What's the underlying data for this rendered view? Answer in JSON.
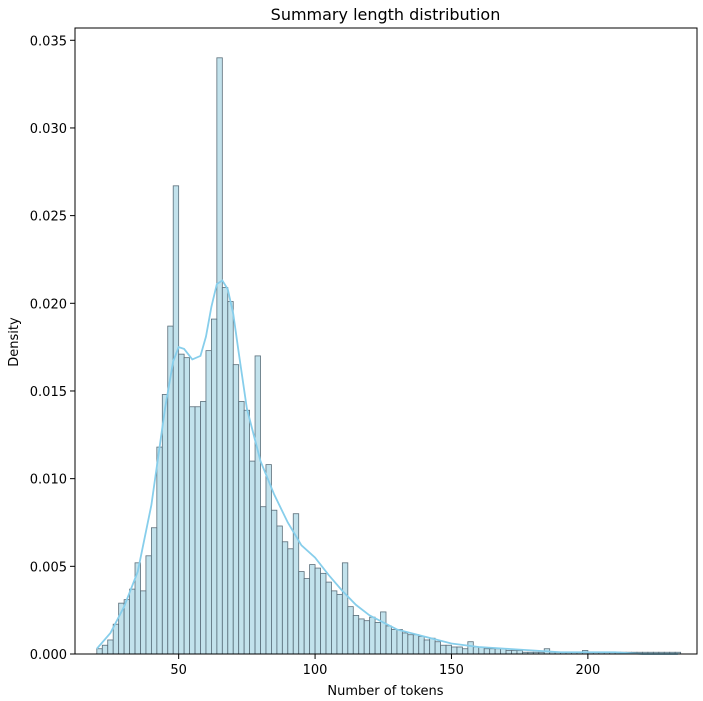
{
  "chart_data": {
    "type": "bar",
    "title": "Summary length distribution",
    "xlabel": "Number of tokens",
    "ylabel": "Density",
    "xlim": [
      12,
      240
    ],
    "ylim": [
      0,
      0.0357
    ],
    "xticks": [
      50,
      100,
      150,
      200
    ],
    "yticks": [
      0.0,
      0.005,
      0.01,
      0.015,
      0.02,
      0.025,
      0.03,
      0.035
    ],
    "ytick_labels": [
      "0.000",
      "0.005",
      "0.010",
      "0.015",
      "0.020",
      "0.025",
      "0.030",
      "0.035"
    ],
    "bin_width": 2,
    "bin_starts": [
      20,
      22,
      24,
      26,
      28,
      30,
      32,
      34,
      36,
      38,
      40,
      42,
      44,
      46,
      48,
      50,
      52,
      54,
      56,
      58,
      60,
      62,
      64,
      66,
      68,
      70,
      72,
      74,
      76,
      78,
      80,
      82,
      84,
      86,
      88,
      90,
      92,
      94,
      96,
      98,
      100,
      102,
      104,
      106,
      108,
      110,
      112,
      114,
      116,
      118,
      120,
      122,
      124,
      126,
      128,
      130,
      132,
      134,
      136,
      138,
      140,
      142,
      144,
      146,
      148,
      150,
      152,
      154,
      156,
      158,
      160,
      162,
      164,
      166,
      168,
      170,
      172,
      174,
      176,
      178,
      180,
      182,
      184,
      186,
      188,
      190,
      192,
      194,
      196,
      198,
      200,
      202,
      204,
      206,
      208,
      210,
      212,
      214,
      216,
      218,
      220,
      222,
      224,
      226,
      228,
      230,
      232
    ],
    "density": [
      0.0003,
      0.0005,
      0.0008,
      0.0017,
      0.0029,
      0.0031,
      0.0037,
      0.0052,
      0.0036,
      0.0056,
      0.0072,
      0.0118,
      0.0148,
      0.0187,
      0.0267,
      0.0171,
      0.0169,
      0.0141,
      0.0141,
      0.0144,
      0.0173,
      0.0191,
      0.034,
      0.0209,
      0.0201,
      0.0165,
      0.0144,
      0.0139,
      0.011,
      0.017,
      0.0084,
      0.0108,
      0.0082,
      0.0073,
      0.0064,
      0.006,
      0.008,
      0.0047,
      0.0043,
      0.0051,
      0.0049,
      0.0046,
      0.0041,
      0.0036,
      0.0034,
      0.0052,
      0.0027,
      0.0022,
      0.002,
      0.0019,
      0.0021,
      0.0018,
      0.0024,
      0.0016,
      0.0014,
      0.0014,
      0.0012,
      0.0011,
      0.0011,
      0.001,
      0.0008,
      0.0009,
      0.0007,
      0.0005,
      0.0005,
      0.0004,
      0.0004,
      0.0003,
      0.0007,
      0.0004,
      0.0004,
      0.0003,
      0.0003,
      0.0003,
      0.0003,
      0.0002,
      0.0002,
      0.0002,
      0.0001,
      0.0001,
      0.0001,
      0.0001,
      0.0003,
      0.0001,
      0.0001,
      0.0001,
      0.0001,
      0.0001,
      0.0001,
      0.0002,
      0.0001,
      0.0001,
      0.0001,
      0.0001,
      0.0001,
      0.0001,
      0.0001,
      0.0001,
      0.0001,
      0.0001,
      0.0001,
      0.0001,
      0.0001,
      0.0001,
      0.0001,
      0.0001,
      0.0001
    ],
    "kde": {
      "x": [
        20,
        25,
        30,
        35,
        40,
        45,
        48,
        50,
        52,
        55,
        58,
        60,
        62,
        64,
        66,
        68,
        70,
        72,
        75,
        80,
        85,
        90,
        95,
        100,
        105,
        110,
        115,
        120,
        125,
        130,
        140,
        150,
        160,
        170,
        180,
        190,
        200,
        210,
        220,
        230,
        233
      ],
      "y": [
        0.0003,
        0.0012,
        0.0027,
        0.0047,
        0.0085,
        0.014,
        0.0167,
        0.0175,
        0.0174,
        0.0168,
        0.017,
        0.0181,
        0.0198,
        0.0211,
        0.0213,
        0.0208,
        0.0194,
        0.0172,
        0.014,
        0.011,
        0.0091,
        0.0075,
        0.0062,
        0.0055,
        0.0045,
        0.0036,
        0.0028,
        0.0022,
        0.0018,
        0.0014,
        0.001,
        0.0006,
        0.0004,
        0.0003,
        0.0002,
        0.0001,
        0.0001,
        0.0001,
        0.0,
        0.0,
        0.0
      ]
    },
    "grid": false,
    "colors": {
      "bar_fill": "#add8e6",
      "bar_edge": "#5a6e7a",
      "kde_line": "#87ceeb",
      "axis": "#000000"
    }
  }
}
